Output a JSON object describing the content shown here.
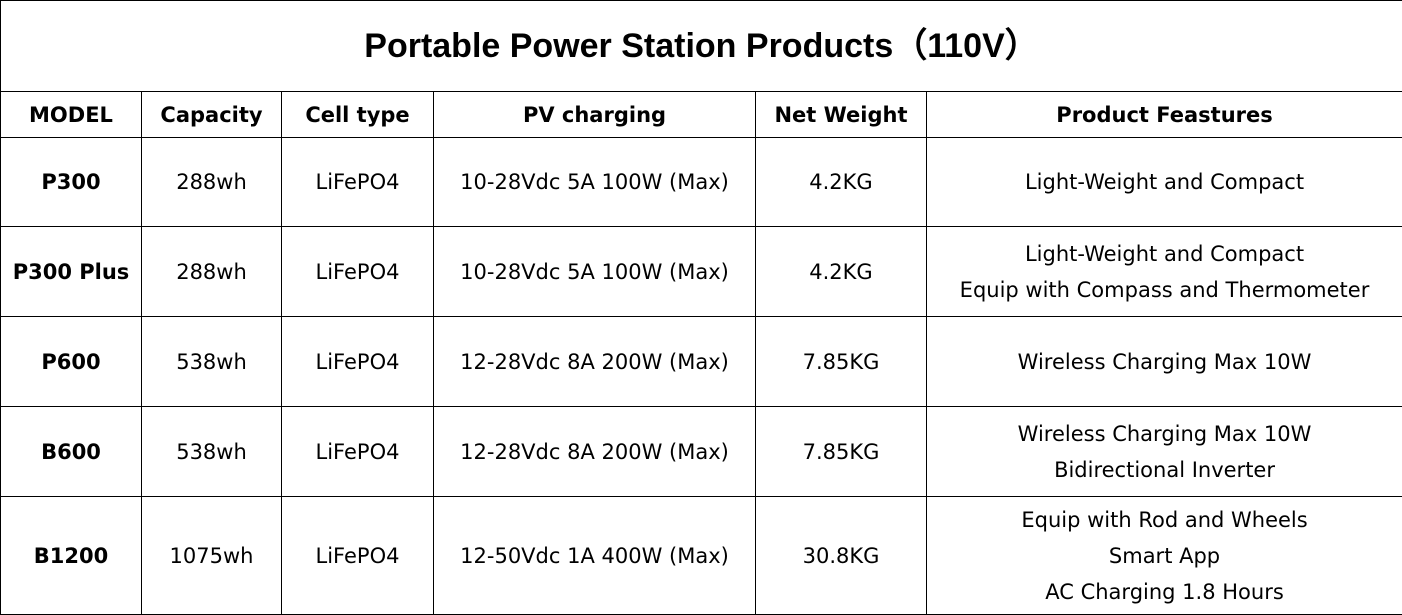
{
  "title": "Portable Power Station Products（110V）",
  "headers": [
    "MODEL",
    "Capacity",
    "Cell type",
    "PV charging",
    "Net Weight",
    "Product Feastures"
  ],
  "rows": [
    {
      "model": "P300",
      "capacity": "288wh",
      "cell": "LiFePO4",
      "pv": "10-28Vdc 5A 100W (Max)",
      "weight": "4.2KG",
      "features": [
        "Light-Weight and Compact"
      ]
    },
    {
      "model": "P300 Plus",
      "capacity": "288wh",
      "cell": "LiFePO4",
      "pv": "10-28Vdc 5A 100W (Max)",
      "weight": "4.2KG",
      "features": [
        "Light-Weight and Compact",
        "Equip with Compass and Thermometer"
      ]
    },
    {
      "model": "P600",
      "capacity": "538wh",
      "cell": "LiFePO4",
      "pv": "12-28Vdc 8A 200W (Max)",
      "weight": "7.85KG",
      "features": [
        "Wireless Charging Max 10W"
      ]
    },
    {
      "model": "B600",
      "capacity": "538wh",
      "cell": "LiFePO4",
      "pv": "12-28Vdc 8A 200W (Max)",
      "weight": "7.85KG",
      "features": [
        "Wireless Charging Max 10W",
        "Bidirectional Inverter"
      ]
    },
    {
      "model": "B1200",
      "capacity": "1075wh",
      "cell": "LiFePO4",
      "pv": "12-50Vdc 1A 400W (Max)",
      "weight": "30.8KG",
      "features": [
        "Equip with Rod and Wheels",
        "Smart App",
        "AC Charging 1.8 Hours"
      ]
    }
  ]
}
